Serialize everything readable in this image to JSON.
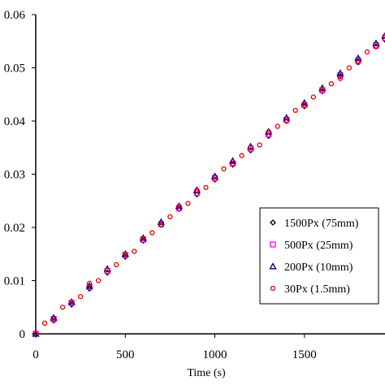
{
  "chart_data": {
    "type": "scatter",
    "title": "",
    "xlabel": "Time (s)",
    "ylabel": "",
    "xlim": [
      0,
      1950
    ],
    "ylim": [
      0,
      0.06
    ],
    "x_ticks": [
      "0",
      "500",
      "1000",
      "1500"
    ],
    "x_tick_values": [
      0,
      500,
      1000,
      1500
    ],
    "y_ticks": [
      "0",
      "0.01",
      "0.02",
      "0.03",
      "0.04",
      "0.05",
      "0.06"
    ],
    "y_tick_values": [
      0,
      0.01,
      0.02,
      0.03,
      0.04,
      0.05,
      0.06
    ],
    "grid": false,
    "legend_position": "right",
    "series": [
      {
        "name": "1500Px (75mm)",
        "marker": "diamond",
        "color": "#000000",
        "x": [
          0,
          100,
          200,
          300,
          400,
          500,
          600,
          700,
          800,
          900,
          1000,
          1100,
          1200,
          1300,
          1400,
          1500,
          1600,
          1700,
          1800,
          1900,
          1950
        ],
        "y": [
          0,
          0.0025,
          0.0055,
          0.0085,
          0.0115,
          0.0145,
          0.0175,
          0.0205,
          0.0235,
          0.0262,
          0.029,
          0.0318,
          0.0345,
          0.0372,
          0.04,
          0.0428,
          0.0456,
          0.0484,
          0.0512,
          0.054,
          0.0553
        ]
      },
      {
        "name": "500Px (25mm)",
        "marker": "square",
        "color": "#ff00ff",
        "x": [
          0,
          100,
          200,
          300,
          400,
          500,
          600,
          700,
          800,
          900,
          1000,
          1100,
          1200,
          1300,
          1400,
          1500,
          1600,
          1700,
          1800,
          1900,
          1950
        ],
        "y": [
          0,
          0.0028,
          0.0058,
          0.0088,
          0.0118,
          0.0148,
          0.0177,
          0.0206,
          0.0236,
          0.0265,
          0.0293,
          0.032,
          0.0348,
          0.0375,
          0.0402,
          0.043,
          0.0458,
          0.0486,
          0.0514,
          0.0542,
          0.0556
        ]
      },
      {
        "name": "200Px (10mm)",
        "marker": "triangle",
        "color": "#00007f",
        "x": [
          0,
          100,
          200,
          300,
          400,
          500,
          600,
          700,
          800,
          900,
          1000,
          1100,
          1200,
          1300,
          1400,
          1500,
          1600,
          1700,
          1800,
          1900,
          1950
        ],
        "y": [
          0,
          0.003,
          0.006,
          0.009,
          0.0122,
          0.015,
          0.018,
          0.021,
          0.024,
          0.027,
          0.0296,
          0.0325,
          0.0352,
          0.038,
          0.0406,
          0.0434,
          0.0462,
          0.049,
          0.0518,
          0.0546,
          0.056
        ]
      },
      {
        "name": "30Px (1.5mm)",
        "marker": "circle",
        "color": "#e00000",
        "x": [
          0,
          50,
          100,
          150,
          200,
          250,
          300,
          350,
          400,
          450,
          500,
          550,
          600,
          650,
          700,
          750,
          800,
          850,
          900,
          950,
          1000,
          1050,
          1100,
          1150,
          1200,
          1250,
          1300,
          1350,
          1400,
          1450,
          1500,
          1550,
          1600,
          1650,
          1700,
          1750,
          1800,
          1850,
          1900,
          1950
        ],
        "y": [
          0,
          0.002,
          0.0025,
          0.005,
          0.006,
          0.007,
          0.0095,
          0.01,
          0.012,
          0.013,
          0.015,
          0.0155,
          0.018,
          0.019,
          0.0205,
          0.022,
          0.024,
          0.0245,
          0.027,
          0.0275,
          0.029,
          0.031,
          0.032,
          0.0335,
          0.035,
          0.0355,
          0.038,
          0.039,
          0.04,
          0.042,
          0.043,
          0.0445,
          0.046,
          0.047,
          0.048,
          0.05,
          0.051,
          0.053,
          0.054,
          0.056
        ]
      }
    ],
    "legend": [
      "1500Px (75mm)",
      "500Px (25mm)",
      "200Px (10mm)",
      "30Px (1.5mm)"
    ]
  }
}
